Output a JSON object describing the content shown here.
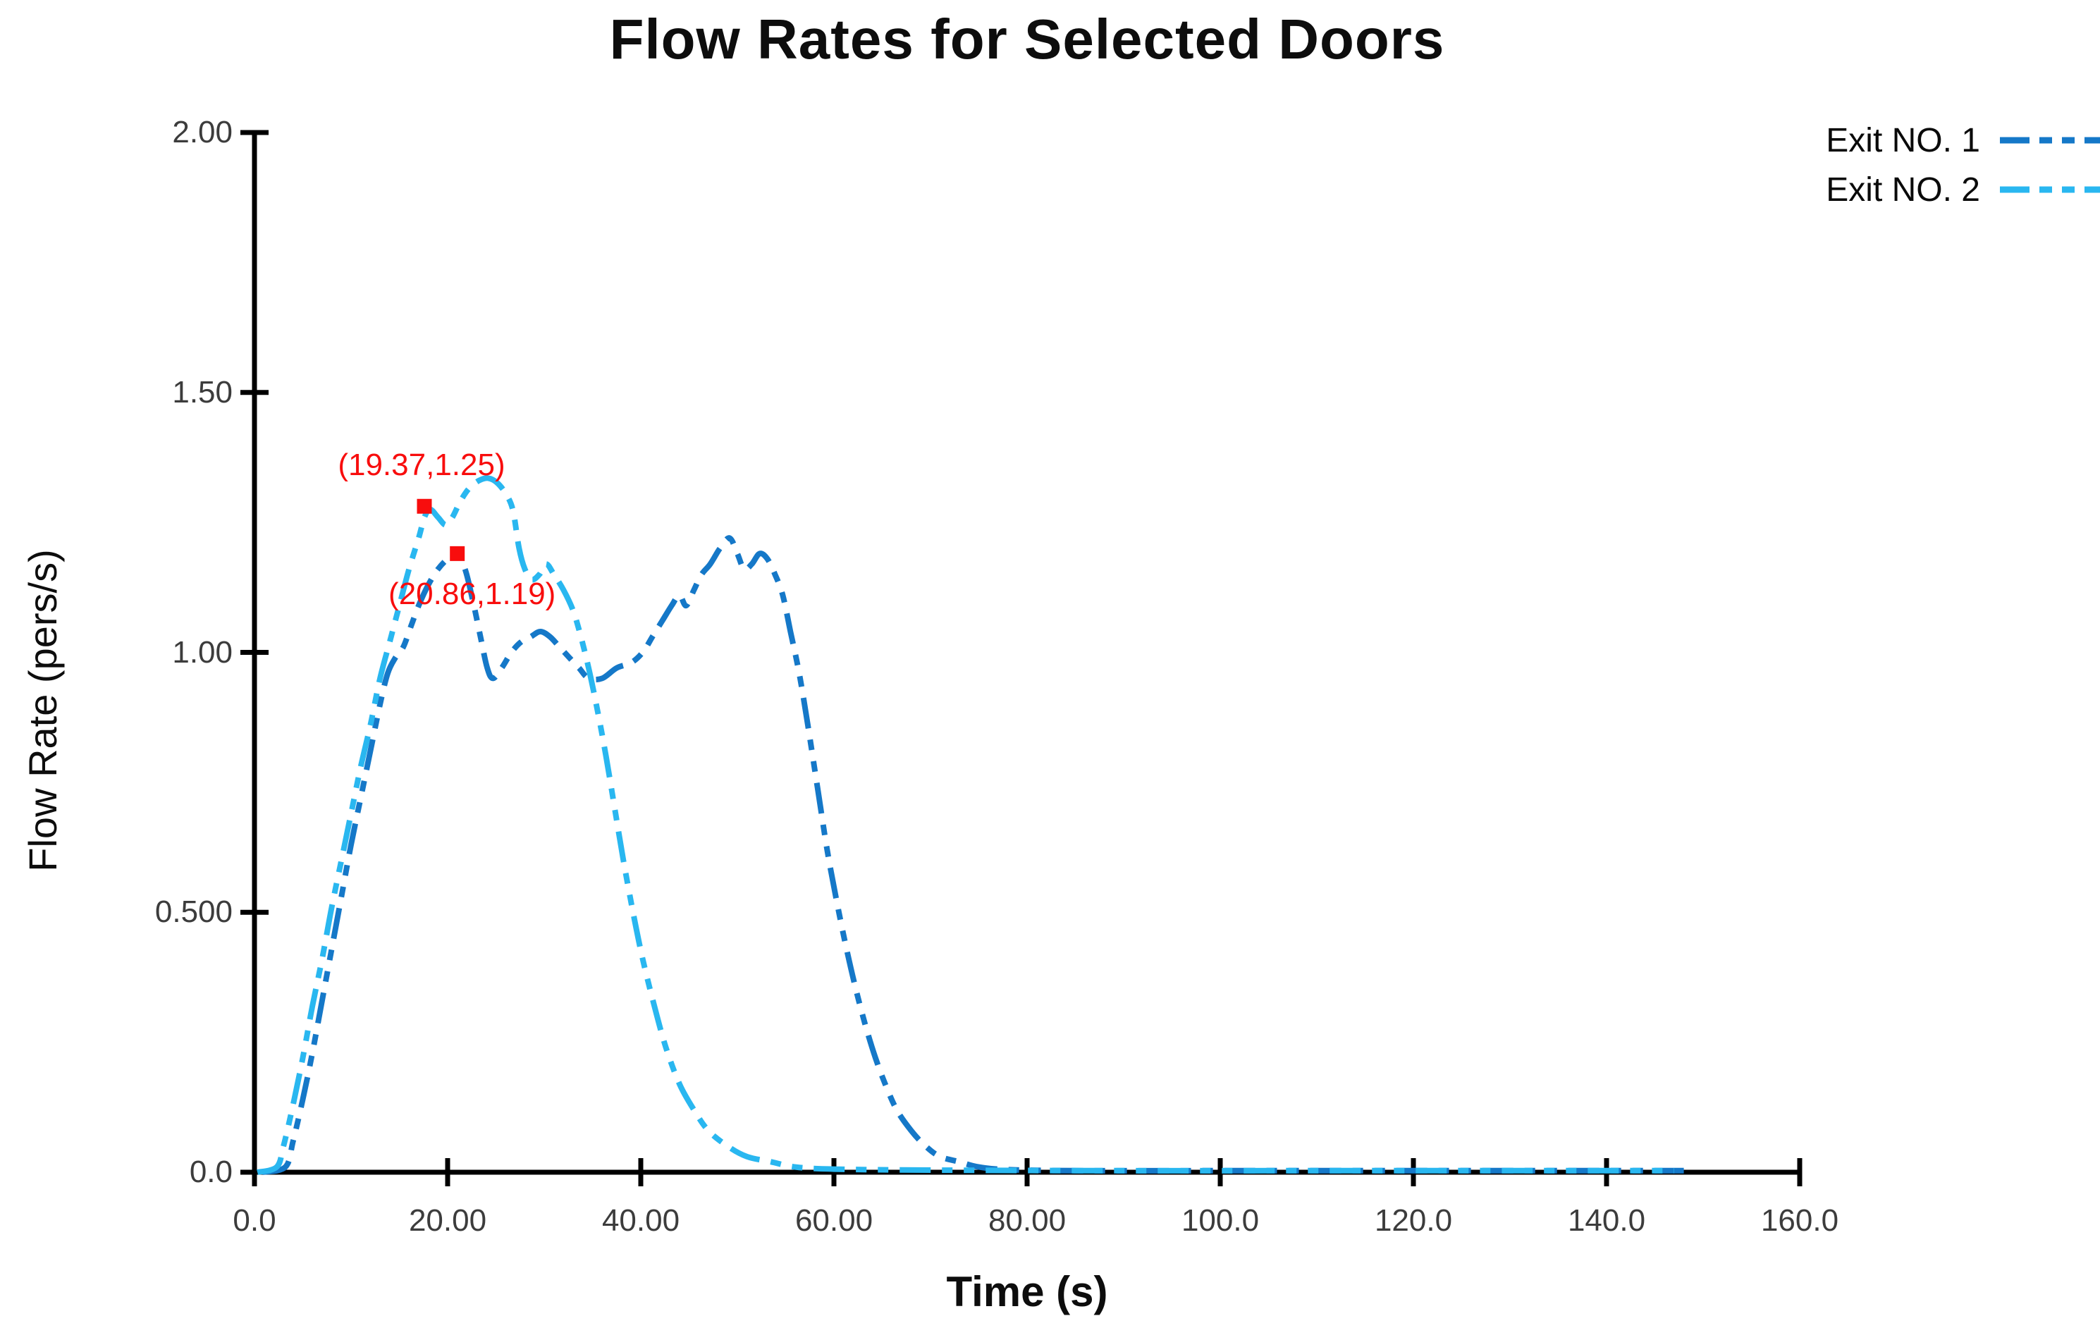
{
  "title": "Flow Rates for Selected Doors",
  "chart_data": {
    "type": "line",
    "title": "Flow Rates for Selected Doors",
    "xlabel": "Time (s)",
    "ylabel": "Flow Rate (pers/s)",
    "xlim": [
      0,
      160
    ],
    "ylim": [
      0,
      2
    ],
    "grid": false,
    "legend_position": "top-right",
    "axis_color": "#000000",
    "tick_label_color": "#3c3c3c",
    "x_ticks": [
      {
        "value": 0,
        "label": "0.0"
      },
      {
        "value": 20,
        "label": "20.00"
      },
      {
        "value": 40,
        "label": "40.00"
      },
      {
        "value": 60,
        "label": "60.00"
      },
      {
        "value": 80,
        "label": "80.00"
      },
      {
        "value": 100,
        "label": "100.0"
      },
      {
        "value": 120,
        "label": "120.0"
      },
      {
        "value": 140,
        "label": "140.0"
      },
      {
        "value": 160,
        "label": "160.0"
      }
    ],
    "y_ticks": [
      {
        "value": 0,
        "label": "0.0"
      },
      {
        "value": 0.5,
        "label": "0.500"
      },
      {
        "value": 1,
        "label": "1.00"
      },
      {
        "value": 1.5,
        "label": "1.50"
      },
      {
        "value": 2,
        "label": "2.00"
      }
    ],
    "series": [
      {
        "name": "Exit NO. 1",
        "color": "#1578c8",
        "style": "dashed",
        "points": [
          [
            0.8,
            0.0
          ],
          [
            3.2,
            0.01
          ],
          [
            4,
            0.06
          ],
          [
            5,
            0.14
          ],
          [
            6,
            0.23
          ],
          [
            7,
            0.33
          ],
          [
            8,
            0.43
          ],
          [
            9,
            0.53
          ],
          [
            10,
            0.63
          ],
          [
            11,
            0.72
          ],
          [
            12,
            0.81
          ],
          [
            13,
            0.9
          ],
          [
            13.8,
            0.96
          ],
          [
            14.6,
            0.99
          ],
          [
            15.4,
            1.01
          ],
          [
            16.2,
            1.05
          ],
          [
            17,
            1.09
          ],
          [
            18,
            1.13
          ],
          [
            19,
            1.16
          ],
          [
            20,
            1.18
          ],
          [
            20.86,
            1.19
          ],
          [
            21.8,
            1.16
          ],
          [
            22.6,
            1.1
          ],
          [
            23.4,
            1.03
          ],
          [
            24.1,
            0.97
          ],
          [
            24.7,
            0.95
          ],
          [
            25.6,
            0.97
          ],
          [
            26.6,
            1.0
          ],
          [
            27.6,
            1.02
          ],
          [
            28.6,
            1.03
          ],
          [
            29.6,
            1.04
          ],
          [
            30.6,
            1.03
          ],
          [
            31.6,
            1.01
          ],
          [
            32.6,
            0.99
          ],
          [
            33.6,
            0.97
          ],
          [
            34.6,
            0.95
          ],
          [
            36,
            0.95
          ],
          [
            37.5,
            0.97
          ],
          [
            39,
            0.98
          ],
          [
            40.2,
            1.0
          ],
          [
            41.2,
            1.03
          ],
          [
            42.2,
            1.06
          ],
          [
            43.2,
            1.09
          ],
          [
            44,
            1.11
          ],
          [
            44.7,
            1.09
          ],
          [
            45.5,
            1.12
          ],
          [
            46.3,
            1.15
          ],
          [
            47.2,
            1.17
          ],
          [
            48.2,
            1.2
          ],
          [
            49.2,
            1.22
          ],
          [
            50,
            1.19
          ],
          [
            50.7,
            1.16
          ],
          [
            51.5,
            1.17
          ],
          [
            52.3,
            1.19
          ],
          [
            53.1,
            1.18
          ],
          [
            53.9,
            1.15
          ],
          [
            54.7,
            1.11
          ],
          [
            55.5,
            1.04
          ],
          [
            56.4,
            0.96
          ],
          [
            57.3,
            0.86
          ],
          [
            58.3,
            0.74
          ],
          [
            59.3,
            0.62
          ],
          [
            60.3,
            0.52
          ],
          [
            61.3,
            0.43
          ],
          [
            62.3,
            0.35
          ],
          [
            63.3,
            0.28
          ],
          [
            64.3,
            0.22
          ],
          [
            65.3,
            0.17
          ],
          [
            66.5,
            0.12
          ],
          [
            68,
            0.08
          ],
          [
            69.5,
            0.05
          ],
          [
            71,
            0.03
          ],
          [
            73,
            0.02
          ],
          [
            75,
            0.01
          ],
          [
            78,
            0.005
          ],
          [
            85,
            0.003
          ],
          [
            100,
            0.003
          ],
          [
            120,
            0.003
          ],
          [
            140,
            0.003
          ],
          [
            148,
            0.003
          ]
        ]
      },
      {
        "name": "Exit NO. 2",
        "color": "#29b7f0",
        "style": "dashed",
        "points": [
          [
            0.3,
            0.0
          ],
          [
            2.3,
            0.01
          ],
          [
            3,
            0.05
          ],
          [
            4,
            0.13
          ],
          [
            5,
            0.22
          ],
          [
            6,
            0.32
          ],
          [
            7,
            0.41
          ],
          [
            8,
            0.51
          ],
          [
            9,
            0.6
          ],
          [
            10,
            0.69
          ],
          [
            11,
            0.78
          ],
          [
            12,
            0.86
          ],
          [
            13,
            0.95
          ],
          [
            14,
            1.02
          ],
          [
            15,
            1.09
          ],
          [
            16,
            1.16
          ],
          [
            17,
            1.22
          ],
          [
            17.6,
            1.26
          ],
          [
            18.2,
            1.275
          ],
          [
            19.0,
            1.26
          ],
          [
            19.8,
            1.245
          ],
          [
            20.5,
            1.26
          ],
          [
            21.3,
            1.29
          ],
          [
            22.2,
            1.315
          ],
          [
            23.2,
            1.33
          ],
          [
            24.2,
            1.335
          ],
          [
            25.2,
            1.325
          ],
          [
            26.2,
            1.3
          ],
          [
            26.8,
            1.27
          ],
          [
            27.4,
            1.2
          ],
          [
            28,
            1.16
          ],
          [
            28.7,
            1.14
          ],
          [
            29.5,
            1.15
          ],
          [
            30.2,
            1.17
          ],
          [
            31,
            1.15
          ],
          [
            32,
            1.12
          ],
          [
            33,
            1.08
          ],
          [
            33.8,
            1.03
          ],
          [
            34.6,
            0.97
          ],
          [
            35.5,
            0.89
          ],
          [
            36.4,
            0.8
          ],
          [
            37.3,
            0.7
          ],
          [
            38.2,
            0.6
          ],
          [
            39.2,
            0.5
          ],
          [
            40.2,
            0.41
          ],
          [
            41.4,
            0.32
          ],
          [
            42.6,
            0.24
          ],
          [
            44,
            0.17
          ],
          [
            45.5,
            0.12
          ],
          [
            47,
            0.08
          ],
          [
            49,
            0.05
          ],
          [
            51,
            0.03
          ],
          [
            53.5,
            0.02
          ],
          [
            56,
            0.01
          ],
          [
            60,
            0.006
          ],
          [
            70,
            0.004
          ],
          [
            90,
            0.003
          ],
          [
            110,
            0.003
          ],
          [
            130,
            0.003
          ],
          [
            147,
            0.003
          ]
        ]
      }
    ],
    "annotations": [
      {
        "text": "(19.37,1.25)",
        "point": [
          19.37,
          1.25
        ],
        "marker": [
          17.59,
          1.281
        ],
        "placement": "above",
        "color": "#f80d0d"
      },
      {
        "text": "(20.86,1.19)",
        "point": [
          20.86,
          1.19
        ],
        "marker": [
          21.0,
          1.19
        ],
        "placement": "below",
        "color": "#f80d0d"
      }
    ]
  },
  "legend": {
    "items": [
      {
        "label": "Exit NO. 1",
        "color": "#1578c8"
      },
      {
        "label": "Exit NO. 2",
        "color": "#29b7f0"
      }
    ]
  }
}
